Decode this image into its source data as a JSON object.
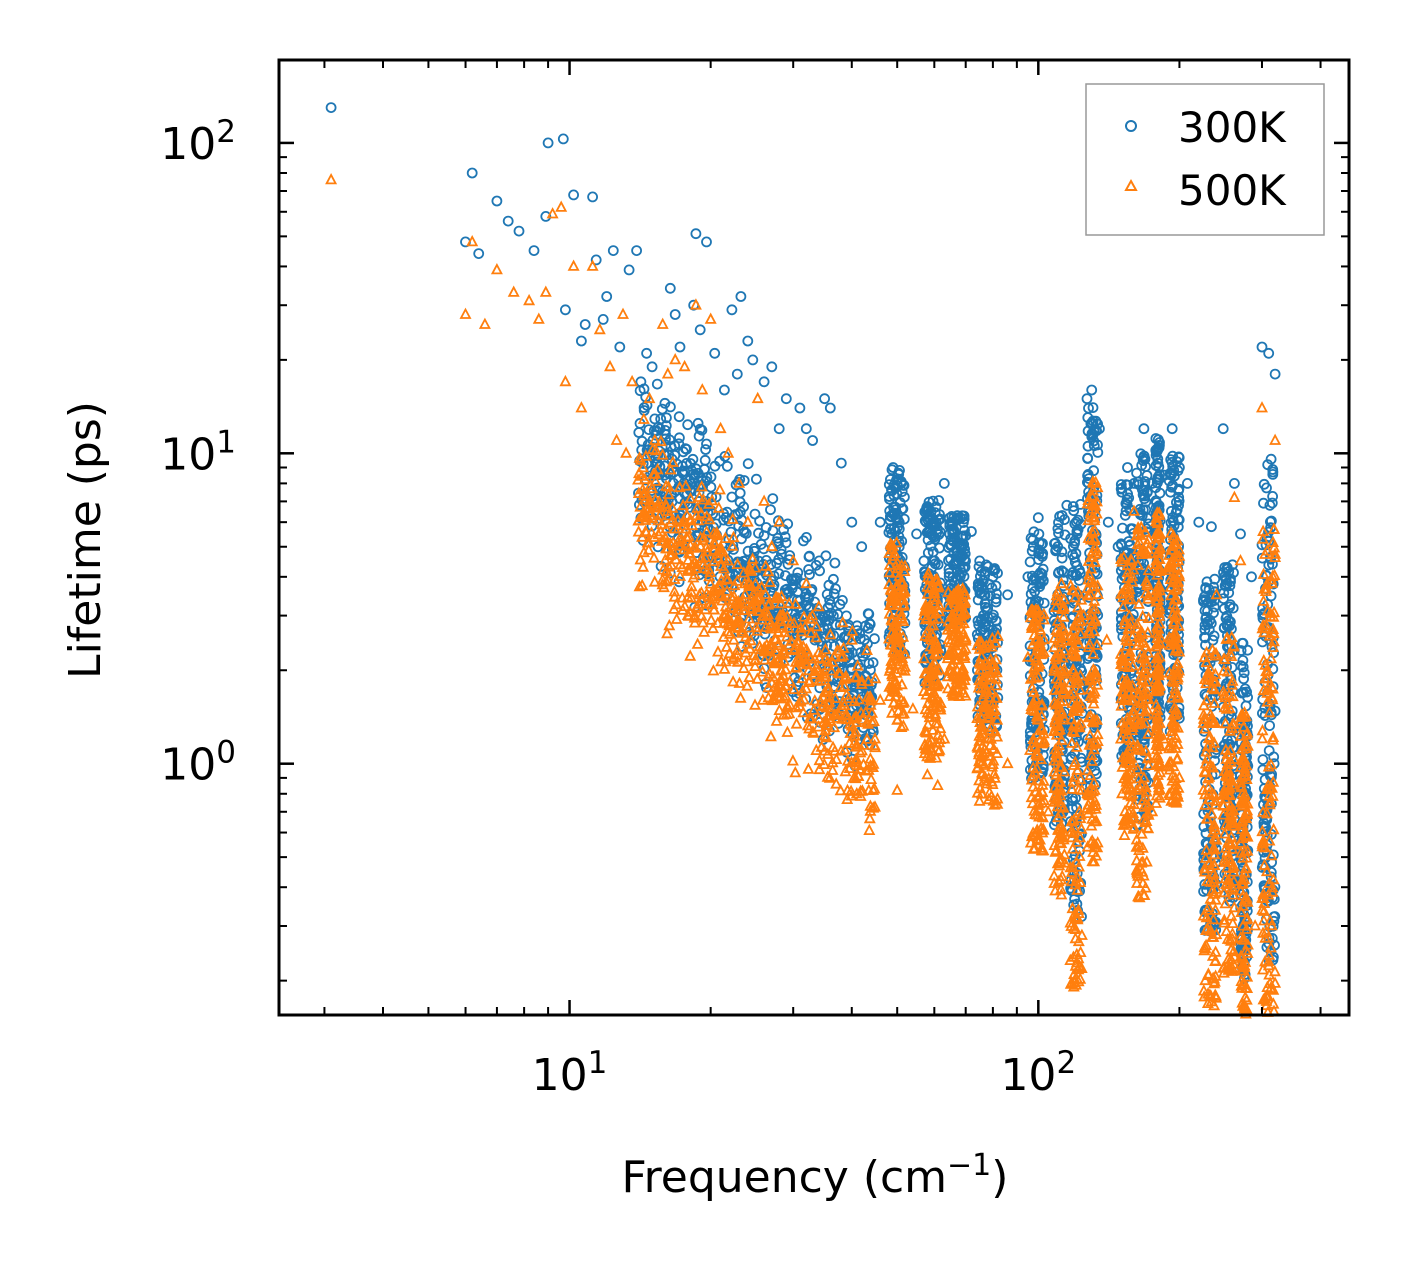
{
  "chart_data": {
    "type": "scatter",
    "title": "",
    "xlabel": "Frequency (cm",
    "xlabel_sup": "−1",
    "xlabel_end": ")",
    "ylabel": "Lifetime (ps)",
    "xscale": "log",
    "yscale": "log",
    "xlim": [
      2.4,
      460
    ],
    "ylim": [
      0.155,
      185
    ],
    "x_ticks": [
      {
        "value": 10,
        "base": "10",
        "exp": "1"
      },
      {
        "value": 100,
        "base": "10",
        "exp": "2"
      }
    ],
    "y_ticks": [
      {
        "value": 1,
        "base": "10",
        "exp": "0"
      },
      {
        "value": 10,
        "base": "10",
        "exp": "1"
      },
      {
        "value": 100,
        "base": "10",
        "exp": "2"
      }
    ],
    "legend_position": "top-right",
    "series": [
      {
        "name": "300K",
        "marker": "circle",
        "color": "#1f77b4",
        "points": [
          [
            3.1,
            130
          ],
          [
            6,
            48
          ],
          [
            6.2,
            80
          ],
          [
            6.4,
            44
          ],
          [
            7,
            65
          ],
          [
            7.4,
            56
          ],
          [
            7.8,
            52
          ],
          [
            8.4,
            45
          ],
          [
            8.9,
            58
          ],
          [
            9,
            100
          ],
          [
            9.7,
            103
          ],
          [
            9.8,
            29
          ],
          [
            10.2,
            68
          ],
          [
            10.6,
            23
          ],
          [
            10.8,
            26
          ],
          [
            11.2,
            67
          ],
          [
            11.4,
            42
          ],
          [
            11.8,
            27
          ],
          [
            12,
            32
          ],
          [
            12.4,
            45
          ],
          [
            12.8,
            22
          ],
          [
            13.4,
            39
          ],
          [
            13.9,
            45
          ],
          [
            14.2,
            17
          ],
          [
            14.6,
            21
          ],
          [
            15,
            19
          ],
          [
            15.6,
            12
          ],
          [
            16.4,
            34
          ],
          [
            16.8,
            28
          ],
          [
            17.2,
            22
          ],
          [
            18.4,
            30
          ],
          [
            18.6,
            51
          ],
          [
            19,
            25
          ],
          [
            19.6,
            48
          ],
          [
            20.4,
            21
          ],
          [
            21.4,
            16
          ],
          [
            22.2,
            29
          ],
          [
            22.8,
            18
          ],
          [
            23.2,
            32
          ],
          [
            24,
            23
          ],
          [
            24.6,
            20
          ],
          [
            26,
            17
          ],
          [
            27,
            19
          ],
          [
            28,
            12
          ],
          [
            29,
            15
          ],
          [
            31,
            14
          ],
          [
            32,
            12
          ],
          [
            33,
            11
          ],
          [
            35,
            15
          ],
          [
            36,
            14
          ],
          [
            38,
            9.3
          ],
          [
            40,
            6
          ],
          [
            42,
            5
          ],
          [
            46,
            6
          ],
          [
            49,
            9
          ],
          [
            51,
            8
          ],
          [
            55,
            5.5
          ],
          [
            59,
            6.5
          ],
          [
            63,
            8
          ],
          [
            66,
            6.2
          ],
          [
            72,
            5.6
          ],
          [
            75,
            4.5
          ],
          [
            80,
            4
          ],
          [
            86,
            3.5
          ],
          [
            95,
            4
          ],
          [
            100,
            6.2
          ],
          [
            110,
            5
          ],
          [
            115,
            6.8
          ],
          [
            121,
            5.5
          ],
          [
            127,
            15
          ],
          [
            130,
            16
          ],
          [
            135,
            12
          ],
          [
            141,
            6
          ],
          [
            148,
            5
          ],
          [
            155,
            9
          ],
          [
            160,
            8
          ],
          [
            168,
            12
          ],
          [
            175,
            8
          ],
          [
            186,
            8.5
          ],
          [
            193,
            12
          ],
          [
            200,
            9
          ],
          [
            208,
            8
          ],
          [
            220,
            6
          ],
          [
            234,
            5.8
          ],
          [
            248,
            12
          ],
          [
            262,
            8
          ],
          [
            270,
            5.5
          ],
          [
            285,
            4
          ],
          [
            300,
            22
          ],
          [
            310,
            21
          ],
          [
            320,
            18
          ]
        ]
      },
      {
        "name": "500K",
        "marker": "triangle",
        "color": "#ff7f0e",
        "points": [
          [
            3.1,
            76
          ],
          [
            6,
            28
          ],
          [
            6.2,
            48
          ],
          [
            6.6,
            26
          ],
          [
            7,
            39
          ],
          [
            7.6,
            33
          ],
          [
            8.2,
            31
          ],
          [
            8.6,
            27
          ],
          [
            8.9,
            33
          ],
          [
            9.2,
            59
          ],
          [
            9.6,
            62
          ],
          [
            9.8,
            17
          ],
          [
            10.2,
            40
          ],
          [
            10.6,
            14
          ],
          [
            11.2,
            40
          ],
          [
            11.6,
            25
          ],
          [
            12.2,
            19
          ],
          [
            12.6,
            11
          ],
          [
            13,
            28
          ],
          [
            13.2,
            10
          ],
          [
            13.6,
            17
          ],
          [
            14,
            8.2
          ],
          [
            14.8,
            15
          ],
          [
            15.2,
            11
          ],
          [
            15.8,
            26
          ],
          [
            16.2,
            18
          ],
          [
            16.8,
            20
          ],
          [
            17.6,
            19
          ],
          [
            18.6,
            30
          ],
          [
            19.2,
            16
          ],
          [
            20,
            27
          ],
          [
            21,
            12
          ],
          [
            21.8,
            10
          ],
          [
            22.4,
            2.5
          ],
          [
            23,
            8
          ],
          [
            24,
            6
          ],
          [
            25.2,
            15
          ],
          [
            26,
            7
          ],
          [
            27,
            5
          ],
          [
            28,
            6
          ],
          [
            30,
            4.5
          ],
          [
            32,
            3.8
          ],
          [
            34,
            3.2
          ],
          [
            36,
            2.6
          ],
          [
            38,
            2.2
          ],
          [
            40,
            2.5
          ],
          [
            42,
            1.8
          ],
          [
            44,
            1.6
          ],
          [
            46,
            1.6
          ],
          [
            50,
            0.82
          ],
          [
            54,
            1.5
          ],
          [
            58,
            0.92
          ],
          [
            61,
            0.85
          ],
          [
            63,
            1.2
          ],
          [
            66,
            3.5
          ],
          [
            75,
            2
          ],
          [
            80,
            1.5
          ],
          [
            86,
            1
          ],
          [
            95,
            2.2
          ],
          [
            105,
            0.7
          ],
          [
            112,
            3.8
          ],
          [
            120,
            0.32
          ],
          [
            125,
            3
          ],
          [
            131,
            8
          ],
          [
            140,
            2.5
          ],
          [
            150,
            1.2
          ],
          [
            160,
            6.5
          ],
          [
            168,
            0.9
          ],
          [
            175,
            0.7
          ],
          [
            185,
            1.2
          ],
          [
            193,
            5
          ],
          [
            200,
            4
          ],
          [
            228,
            0.29
          ],
          [
            240,
            3.5
          ],
          [
            255,
            0.22
          ],
          [
            262,
            7.2
          ],
          [
            270,
            4.5
          ],
          [
            290,
            0.3
          ],
          [
            300,
            14
          ],
          [
            310,
            0.23
          ],
          [
            320,
            11
          ]
        ]
      }
    ]
  }
}
